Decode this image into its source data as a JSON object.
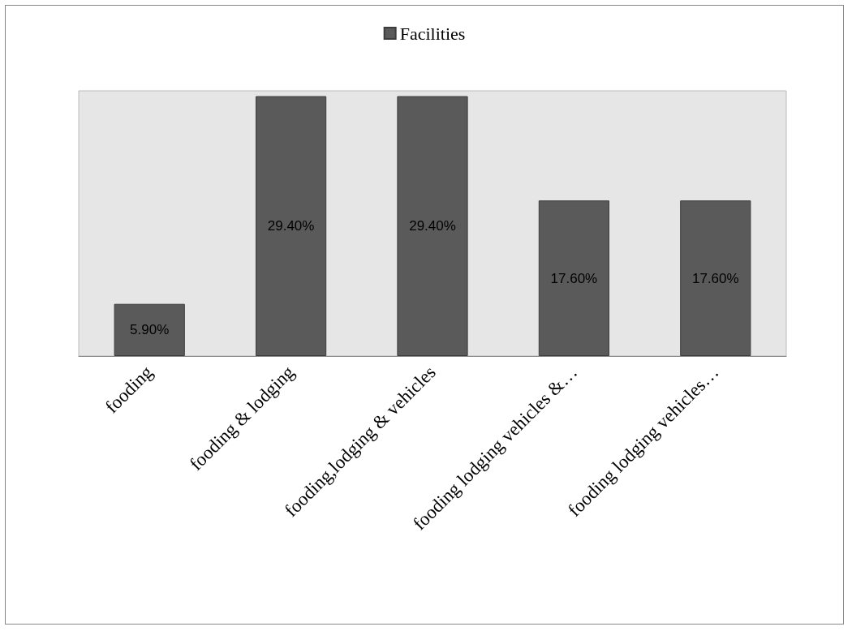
{
  "chart_data": {
    "type": "bar",
    "categories": [
      "fooding",
      "fooding & lodging",
      "fooding,lodging & vehicles",
      "fooding lodging vehicles &…",
      "fooding lodging vehicles…"
    ],
    "series": [
      {
        "name": "Facilities",
        "color": "#5a5a5a",
        "values": [
          5.9,
          29.4,
          29.4,
          17.6,
          17.6
        ],
        "value_labels": [
          "5.90%",
          "29.40%",
          "29.40%",
          "17.60%",
          "17.60%"
        ]
      }
    ],
    "legend": "top"
  }
}
